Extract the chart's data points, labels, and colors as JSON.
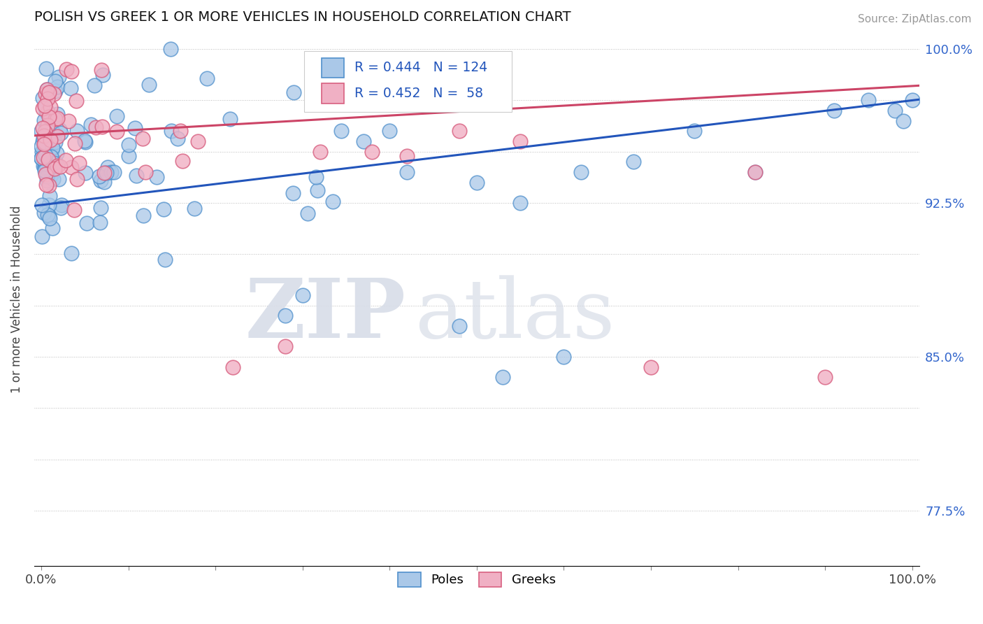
{
  "title": "POLISH VS GREEK 1 OR MORE VEHICLES IN HOUSEHOLD CORRELATION CHART",
  "source": "Source: ZipAtlas.com",
  "ylabel": "1 or more Vehicles in Household",
  "xlim": [
    -0.008,
    1.008
  ],
  "ylim": [
    0.748,
    1.008
  ],
  "yticks": [
    0.775,
    0.8,
    0.825,
    0.85,
    0.875,
    0.9,
    0.925,
    0.95,
    0.975,
    1.0
  ],
  "ytick_labels_right": [
    "77.5%",
    "",
    "",
    "85.0%",
    "",
    "",
    "92.5%",
    "",
    "",
    "100.0%"
  ],
  "poles_color": "#aac8e8",
  "poles_edge_color": "#5090cc",
  "greeks_color": "#f0b0c4",
  "greeks_edge_color": "#d86080",
  "trend_blue": "#2255bb",
  "trend_pink": "#cc4466",
  "R_poles": 0.444,
  "N_poles": 124,
  "R_greeks": 0.452,
  "N_greeks": 58,
  "watermark_zip": "ZIP",
  "watermark_atlas": "atlas",
  "legend_blue_label": "R = 0.444   N = 124",
  "legend_pink_label": "R = 0.452   N =  58",
  "poles_label": "Poles",
  "greeks_label": "Greeks"
}
